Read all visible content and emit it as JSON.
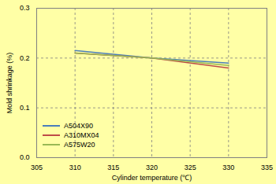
{
  "chart_data": {
    "type": "line",
    "x_label": "Cylinder temperature (℃)",
    "y_label": "Mold shrinkage (%)",
    "x": [
      310,
      320,
      330
    ],
    "series": [
      {
        "name": "A504X90",
        "color": "#4a7ebb",
        "values": [
          0.215,
          0.2,
          0.19
        ]
      },
      {
        "name": "A310MX04",
        "color": "#be4b48",
        "values": [
          0.21,
          0.2,
          0.18
        ]
      },
      {
        "name": "A575W20",
        "color": "#98b954",
        "values": [
          0.21,
          0.2,
          0.185
        ]
      }
    ],
    "xlim": [
      305,
      335
    ],
    "xticks": [
      305,
      310,
      315,
      320,
      325,
      330,
      335
    ],
    "ylim": [
      0,
      0.3
    ],
    "yticks": [
      {
        "value": 0,
        "label": "0.0"
      },
      0.1,
      0.2,
      0.3
    ],
    "grid": true,
    "legend": "bottom-left"
  }
}
